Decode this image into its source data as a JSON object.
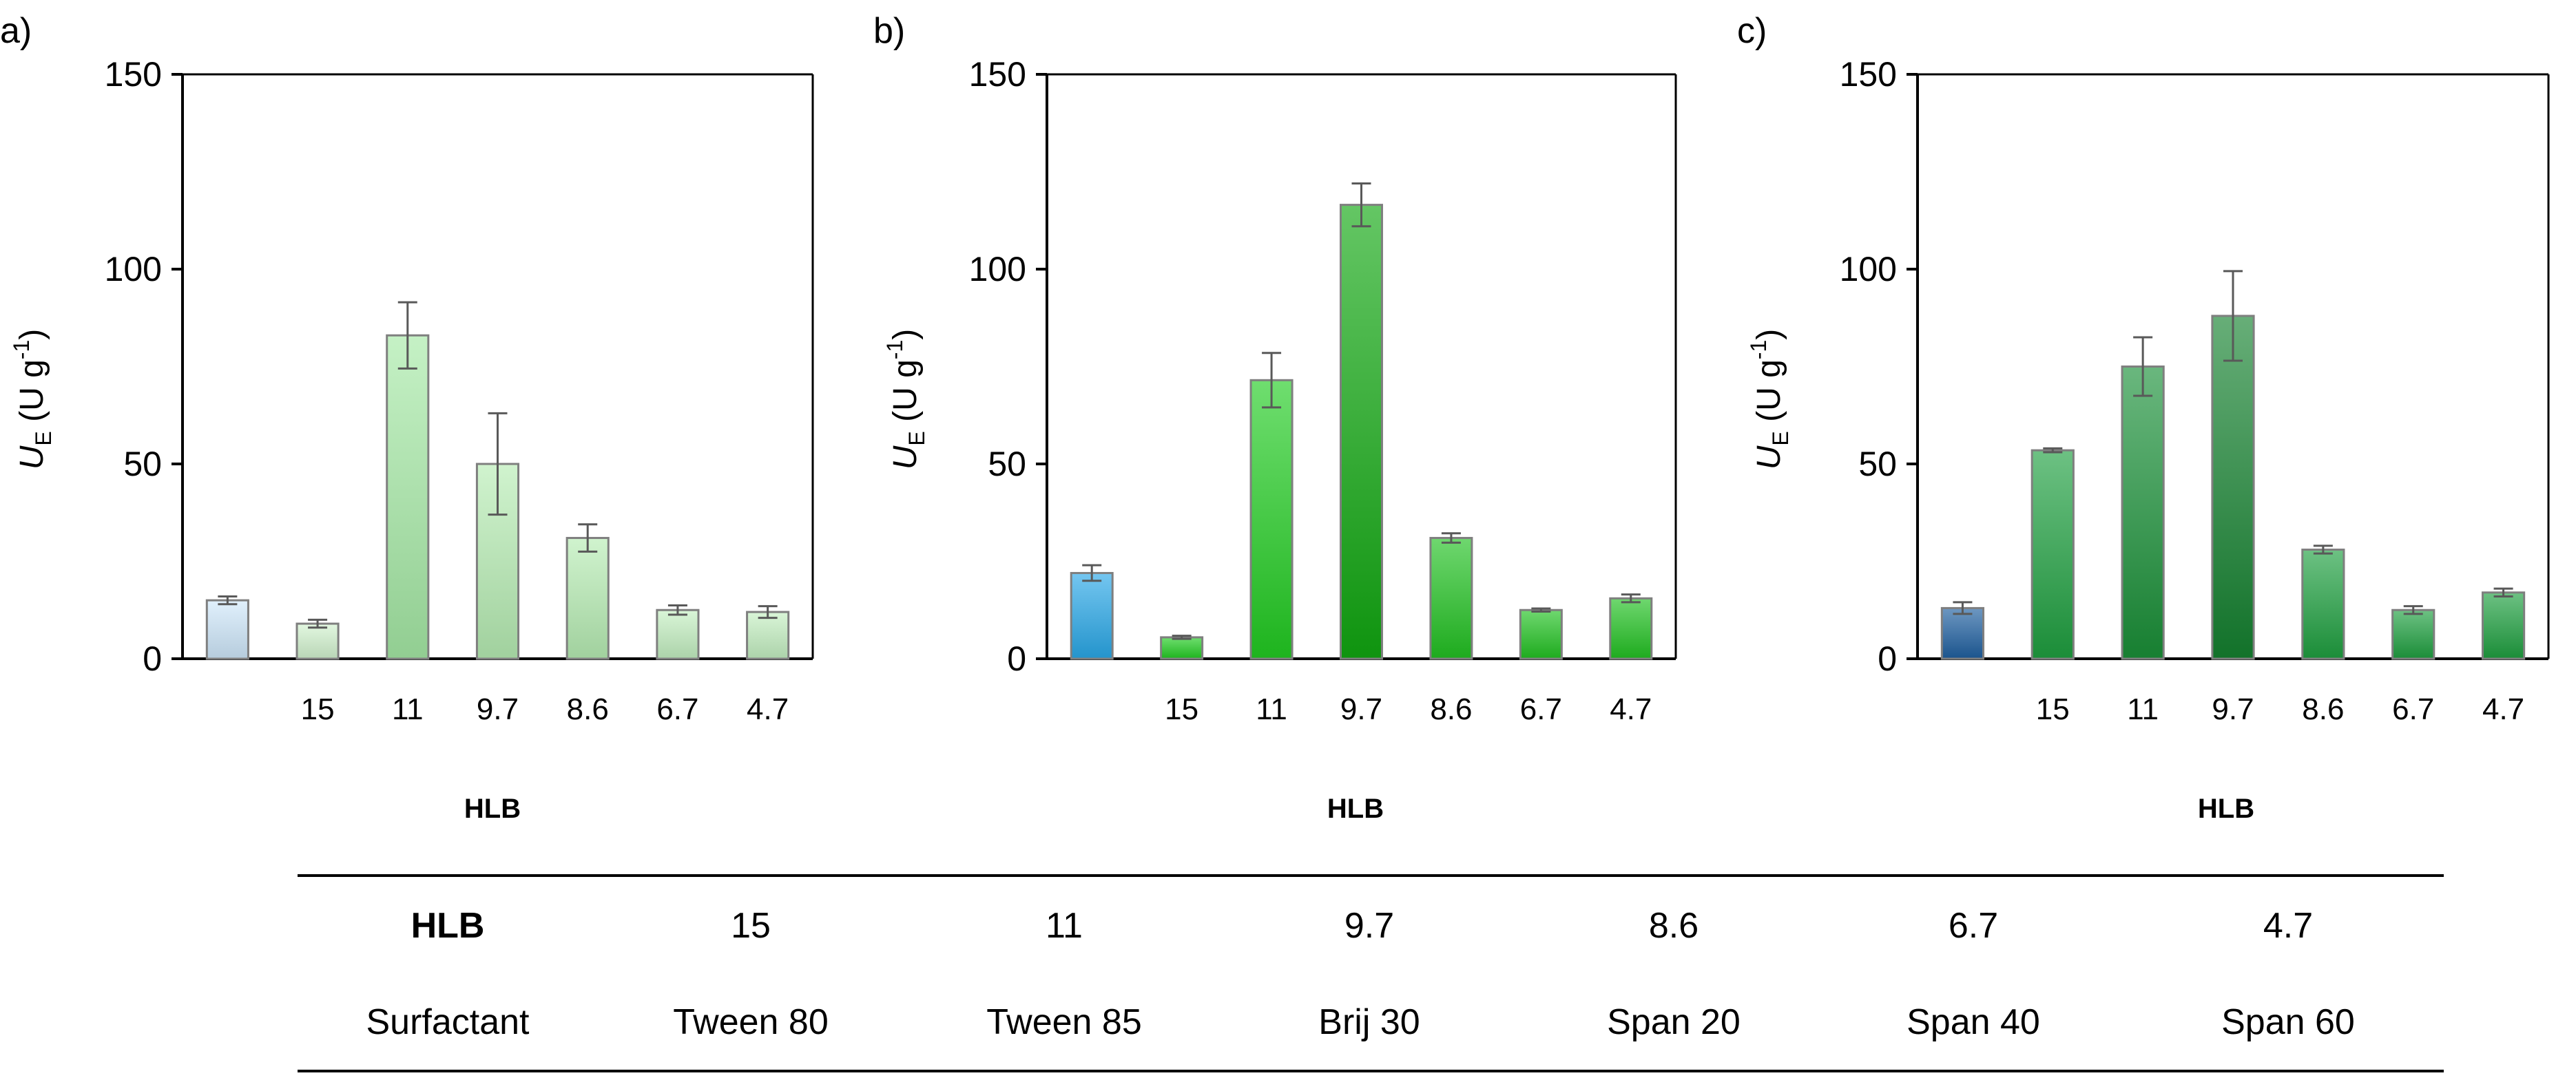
{
  "chart_data": [
    {
      "type": "bar",
      "panel_label": "a)",
      "categories": [
        "",
        "15",
        "11",
        "9.7",
        "8.6",
        "6.7",
        "4.7"
      ],
      "values": [
        15,
        9,
        83,
        50,
        31,
        12.5,
        12
      ],
      "errors": [
        1,
        1,
        8.5,
        13,
        3.5,
        1.2,
        1.5
      ],
      "bar_colors": [
        "#cfe8fb",
        "#d2f3cf",
        "#a6eaa6",
        "#b7edb4",
        "#b7edb4",
        "#c4f0c1",
        "#c4f0c1"
      ],
      "ylabel_main": "U",
      "ylabel_sub": "E",
      "ylabel_unit": " (U g",
      "ylabel_exp": "-1",
      "ylabel_close": ")",
      "xlabel": "HLB",
      "ylim": [
        0,
        150
      ],
      "yticks": [
        "0",
        "50",
        "100",
        "150"
      ]
    },
    {
      "type": "bar",
      "panel_label": "b)",
      "categories": [
        "",
        "15",
        "11",
        "9.7",
        "8.6",
        "6.7",
        "4.7"
      ],
      "values": [
        22,
        5.5,
        71.5,
        116.5,
        31,
        12.5,
        15.5
      ],
      "errors": [
        2,
        0.4,
        7,
        5.5,
        1.2,
        0.4,
        1
      ],
      "bar_colors": [
        "#29a8e8",
        "#22cc22",
        "#22cc22",
        "#11a811",
        "#22c222",
        "#22c222",
        "#22c222"
      ],
      "ylabel_main": "U",
      "ylabel_sub": "E",
      "ylabel_unit": " (U g",
      "ylabel_exp": "-1",
      "ylabel_close": ")",
      "xlabel": "HLB",
      "ylim": [
        0,
        150
      ],
      "yticks": [
        "0",
        "50",
        "100",
        "150"
      ]
    },
    {
      "type": "bar",
      "panel_label": "c)",
      "categories": [
        "",
        "15",
        "11",
        "9.7",
        "8.6",
        "6.7",
        "4.7"
      ],
      "values": [
        13,
        53.5,
        75,
        88,
        28,
        12.5,
        17
      ],
      "errors": [
        1.5,
        0.5,
        7.5,
        11.5,
        1,
        1,
        1
      ],
      "bar_colors": [
        "#1f5fa0",
        "#1fa040",
        "#1a9038",
        "#158230",
        "#1fa040",
        "#1fa040",
        "#1fa040"
      ],
      "ylabel_main": "U",
      "ylabel_sub": "E",
      "ylabel_unit": " (U g",
      "ylabel_exp": "-1",
      "ylabel_close": ")",
      "xlabel": "HLB",
      "ylim": [
        0,
        150
      ],
      "yticks": [
        "0",
        "50",
        "100",
        "150"
      ]
    }
  ],
  "table": {
    "row1_header": "HLB",
    "row1_values": [
      "15",
      "11",
      "9.7",
      "8.6",
      "6.7",
      "4.7"
    ],
    "row2_header": "Surfactant",
    "row2_values": [
      "Tween 80",
      "Tween 85",
      "Brij 30",
      "Span 20",
      "Span 40",
      "Span 60"
    ]
  }
}
